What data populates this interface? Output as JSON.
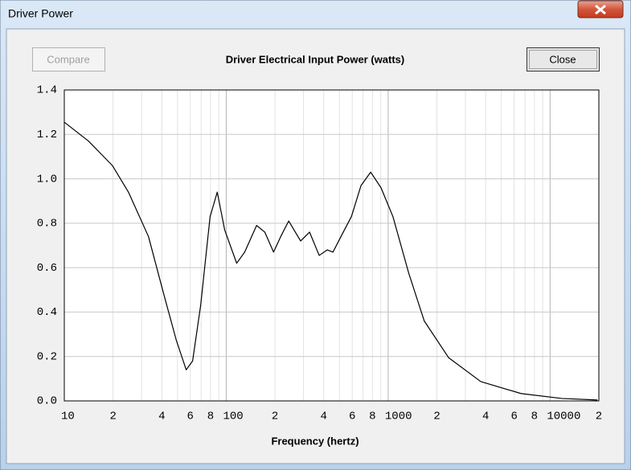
{
  "window": {
    "title": "Driver Power"
  },
  "buttons": {
    "compare": "Compare",
    "close": "Close"
  },
  "chart_data": {
    "type": "line",
    "title": "Driver Electrical Input Power (watts)",
    "xlabel": "Frequency (hertz)",
    "xscale": "log",
    "grid": true,
    "color": "#000000",
    "xlim": [
      10,
      20000
    ],
    "ylim": [
      0,
      1.4
    ],
    "xticks": [
      10,
      {
        "value": 20,
        "label": "2"
      },
      {
        "value": 40,
        "label": "4"
      },
      {
        "value": 60,
        "label": "6"
      },
      {
        "value": 80,
        "label": "8"
      },
      100,
      {
        "value": 200,
        "label": "2"
      },
      {
        "value": 400,
        "label": "4"
      },
      {
        "value": 600,
        "label": "6"
      },
      {
        "value": 800,
        "label": "8"
      },
      1000,
      {
        "value": 2000,
        "label": "2"
      },
      {
        "value": 4000,
        "label": "4"
      },
      {
        "value": 6000,
        "label": "6"
      },
      {
        "value": 8000,
        "label": "8"
      },
      10000,
      {
        "value": 20000,
        "label": "2"
      }
    ],
    "xminor_grid": [
      30,
      50,
      70,
      90,
      300,
      500,
      700,
      900,
      3000,
      5000,
      7000,
      9000
    ],
    "yticks": [
      {
        "value": 0,
        "label": "0.0"
      },
      0.2,
      0.4,
      0.6,
      0.8,
      {
        "value": 1,
        "label": "1.0"
      },
      1.2,
      1.4
    ],
    "x": [
      10,
      14.1,
      19.8,
      24.9,
      33.1,
      41.5,
      49.3,
      56.6,
      62,
      69.5,
      79.5,
      88,
      97.8,
      116,
      130,
      154,
      173,
      196,
      217,
      243,
      288,
      327,
      375,
      421,
      456,
      511,
      593,
      680,
      780,
      903,
      1070,
      1340,
      1670,
      2360,
      3730,
      6630,
      11800,
      19600
    ],
    "values": [
      1.255,
      1.17,
      1.06,
      0.94,
      0.74,
      0.47,
      0.27,
      0.14,
      0.18,
      0.43,
      0.83,
      0.94,
      0.77,
      0.62,
      0.67,
      0.79,
      0.76,
      0.67,
      0.74,
      0.81,
      0.72,
      0.76,
      0.655,
      0.68,
      0.67,
      0.74,
      0.83,
      0.97,
      1.03,
      0.96,
      0.83,
      0.575,
      0.36,
      0.195,
      0.087,
      0.033,
      0.011,
      0.004
    ]
  }
}
